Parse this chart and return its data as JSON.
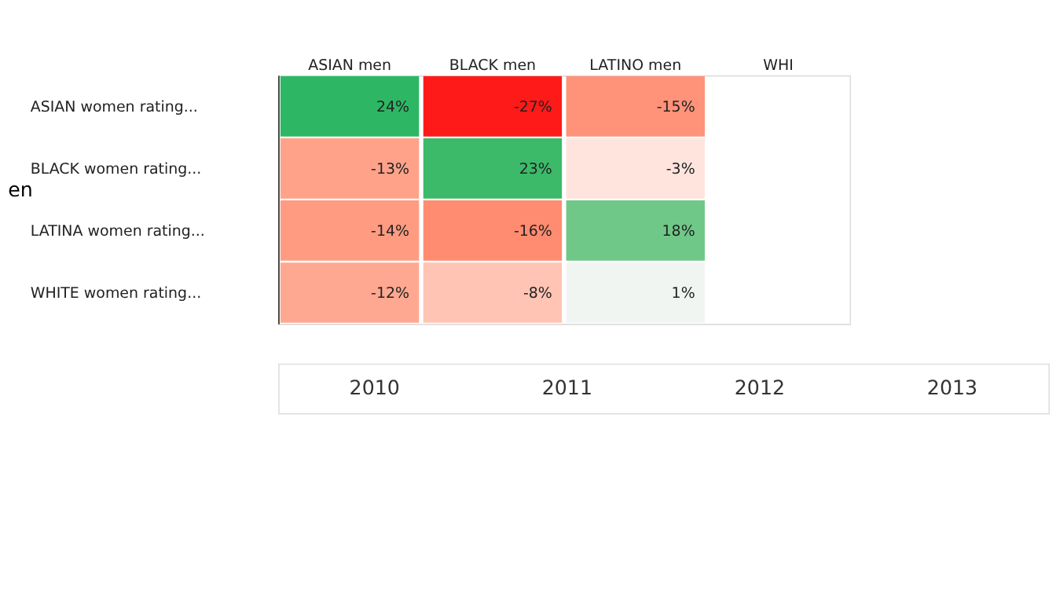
{
  "chart_data": {
    "type": "heatmap",
    "ylabel": "en",
    "categories": [
      "ASIAN men",
      "BLACK men",
      "LATINO men",
      "WHI"
    ],
    "y_categories": [
      "ASIAN women rating...",
      "BLACK women rating...",
      "LATINA women rating...",
      "WHITE women rating..."
    ],
    "cells": [
      [
        24,
        -27,
        -15,
        null
      ],
      [
        -13,
        23,
        -3,
        null
      ],
      [
        -14,
        -16,
        18,
        null
      ],
      [
        -12,
        -8,
        1,
        null
      ]
    ],
    "cell_labels": [
      [
        "24%",
        "-27%",
        "-15%",
        null
      ],
      [
        "-13%",
        "23%",
        "-3%",
        null
      ],
      [
        "-14%",
        "-16%",
        "18%",
        null
      ],
      [
        "-12%",
        "-8%",
        "1%",
        null
      ]
    ],
    "annotations": [
      "2010",
      "2011",
      "2012",
      "2013"
    ]
  }
}
